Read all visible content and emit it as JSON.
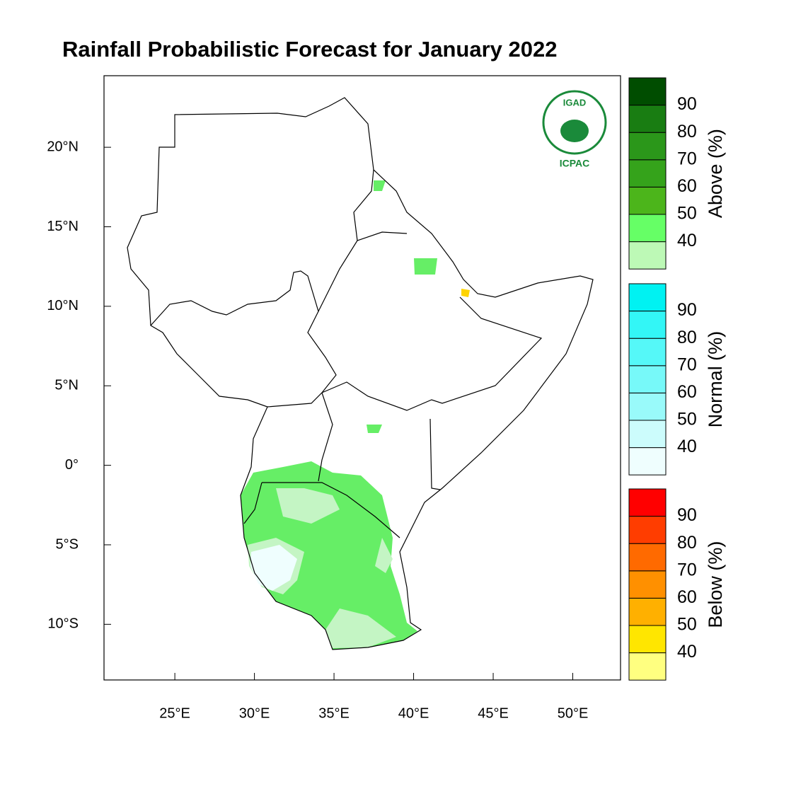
{
  "title": "Rainfall Probabilistic Forecast for January 2022",
  "map": {
    "xlim": [
      20.55,
      53.0
    ],
    "ylim": [
      -13.5,
      24.5
    ],
    "xticks": [
      {
        "value": 25,
        "label": "25°E"
      },
      {
        "value": 30,
        "label": "30°E"
      },
      {
        "value": 35,
        "label": "35°E"
      },
      {
        "value": 40,
        "label": "40°E"
      },
      {
        "value": 45,
        "label": "45°E"
      },
      {
        "value": 50,
        "label": "50°E"
      }
    ],
    "yticks": [
      {
        "value": 20,
        "label": "20°N"
      },
      {
        "value": 15,
        "label": "15°N"
      },
      {
        "value": 10,
        "label": "10°N"
      },
      {
        "value": 5,
        "label": "5°N"
      },
      {
        "value": 0,
        "label": "0°"
      },
      {
        "value": -5,
        "label": "5°S"
      },
      {
        "value": -10,
        "label": "10°S"
      }
    ]
  },
  "logo": {
    "top": "IGAD",
    "bottom": "ICPAC"
  },
  "colorbars": [
    {
      "label": "Above (%)",
      "ticks": [
        40,
        50,
        60,
        70,
        80,
        90
      ],
      "colors": [
        "#bdf9b6",
        "#66ff66",
        "#4cb51b",
        "#35a31b",
        "#2b971a",
        "#197d12",
        "#004d00"
      ]
    },
    {
      "label": "Normal (%)",
      "ticks": [
        40,
        50,
        60,
        70,
        80,
        90
      ],
      "colors": [
        "#effefe",
        "#ccfcfc",
        "#99fafa",
        "#77f9f9",
        "#55f8f8",
        "#33f6f6",
        "#00f2f2"
      ]
    },
    {
      "label": "Below (%)",
      "ticks": [
        40,
        50,
        60,
        70,
        80,
        90
      ],
      "colors": [
        "#ffff80",
        "#ffe600",
        "#ffb000",
        "#ff9000",
        "#ff6a00",
        "#ff3d00",
        "#ff0000"
      ]
    }
  ]
}
